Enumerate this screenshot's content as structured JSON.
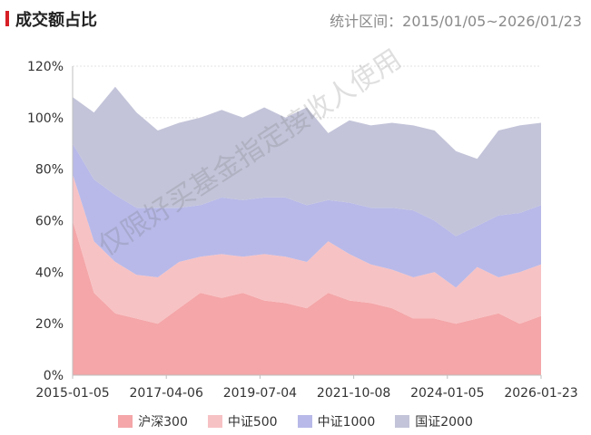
{
  "header": {
    "title": "成交额占比",
    "range_text": "统计区间：2015/01/05~2026/01/23"
  },
  "watermark": "仅限好买基金指定接收人使用",
  "chart_data": {
    "type": "area",
    "stacked": true,
    "title": "成交额占比",
    "xlabel": "",
    "ylabel": "",
    "ylim": [
      0,
      120
    ],
    "yticks": [
      "0%",
      "20%",
      "40%",
      "60%",
      "80%",
      "100%",
      "120%"
    ],
    "xtick_labels": [
      "2015-01-05",
      "2017-04-06",
      "2019-07-04",
      "2021-10-08",
      "2024-01-05",
      "2026-01-23"
    ],
    "x": [
      "2015-01",
      "2015-07",
      "2016-01",
      "2016-07",
      "2017-01",
      "2017-07",
      "2018-01",
      "2018-07",
      "2019-01",
      "2019-07",
      "2020-01",
      "2020-07",
      "2021-01",
      "2021-07",
      "2022-01",
      "2022-07",
      "2023-01",
      "2023-07",
      "2024-01",
      "2024-07",
      "2025-01",
      "2025-07",
      "2026-01"
    ],
    "grid": "horizontal",
    "legend_position": "bottom",
    "series": [
      {
        "name": "沪深300",
        "color": "#f4a6a8",
        "values": [
          60,
          32,
          24,
          22,
          20,
          26,
          32,
          30,
          32,
          29,
          28,
          26,
          32,
          29,
          28,
          26,
          22,
          22,
          20,
          22,
          24,
          20,
          23
        ]
      },
      {
        "name": "中证500",
        "color": "#f7c2c4",
        "values": [
          18,
          20,
          20,
          17,
          18,
          18,
          14,
          17,
          14,
          18,
          18,
          18,
          20,
          18,
          15,
          15,
          16,
          18,
          14,
          20,
          14,
          20,
          20
        ]
      },
      {
        "name": "中证1000",
        "color": "#b8b9e8",
        "values": [
          12,
          24,
          26,
          26,
          27,
          21,
          20,
          22,
          22,
          22,
          23,
          22,
          16,
          20,
          22,
          24,
          26,
          20,
          20,
          16,
          24,
          23,
          23
        ]
      },
      {
        "name": "国证2000",
        "color": "#c3c4d9",
        "values": [
          18,
          26,
          42,
          37,
          30,
          33,
          34,
          34,
          32,
          35,
          31,
          38,
          26,
          32,
          32,
          33,
          33,
          35,
          33,
          26,
          33,
          34,
          32
        ]
      }
    ]
  }
}
